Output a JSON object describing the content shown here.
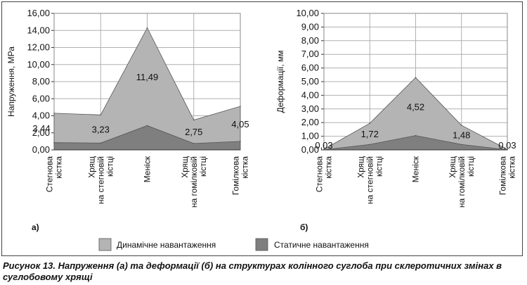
{
  "caption": "Рисунок 13. Напруження (а) та деформації (б) на структурах колінного суглоба при склеротичних змінах в суглобовому хрящі",
  "legend": {
    "dynamic": "Динамічне навантаження",
    "static": "Статичне навантаження"
  },
  "colors": {
    "dynamic": "#b4b4b4",
    "static": "#7f7f7f",
    "grid": "#b0b0b0"
  },
  "chart_data": [
    {
      "type": "area",
      "panel_label": "а)",
      "ylabel": "Напруження, МРа",
      "ylim": [
        0,
        16
      ],
      "yticks": [
        "0,00",
        "2,00",
        "4,00",
        "6,00",
        "8,00",
        "10,00",
        "12,00",
        "14,00",
        "16,00"
      ],
      "categories": [
        [
          "Стегнова",
          "кістка"
        ],
        [
          "Хрящ",
          "на стегновій",
          "кістці"
        ],
        [
          "Меніск"
        ],
        [
          "Хрящ",
          "на гомілковій",
          "кістці"
        ],
        [
          "Гомілкова",
          "кістка"
        ]
      ],
      "series": [
        {
          "name": "Динамічне навантаження",
          "values": [
            4.3,
            4.1,
            14.3,
            3.5,
            5.1
          ]
        },
        {
          "name": "Статичне навантаження",
          "values": [
            0.85,
            0.8,
            2.85,
            0.75,
            1.0
          ]
        }
      ],
      "data_labels": [
        "3,44",
        "3,23",
        "11,49",
        "2,75",
        "4,05"
      ],
      "grid": true
    },
    {
      "type": "area",
      "panel_label": "б)",
      "ylabel": "Деформації, мм",
      "ylim": [
        0,
        10
      ],
      "yticks": [
        "0,00",
        "1,00",
        "2,00",
        "3,00",
        "4,00",
        "5,00",
        "6,00",
        "7,00",
        "8,00",
        "9,00",
        "10,00"
      ],
      "categories": [
        [
          "Стегнова",
          "кістка"
        ],
        [
          "Хрящ",
          "на стегновій",
          "кістці"
        ],
        [
          "Меніск"
        ],
        [
          "Хрящ",
          "на гомілковій",
          "кістці"
        ],
        [
          "Гомілкова",
          "кістка"
        ]
      ],
      "series": [
        {
          "name": "Динамічне навантаження",
          "values": [
            0.04,
            1.95,
            5.3,
            1.8,
            0.04
          ]
        },
        {
          "name": "Статичне навантаження",
          "values": [
            0.01,
            0.4,
            1.05,
            0.4,
            0.01
          ]
        }
      ],
      "data_labels": [
        "0,03",
        "1,72",
        "4,52",
        "1,48",
        "0,03"
      ],
      "grid": true
    }
  ]
}
